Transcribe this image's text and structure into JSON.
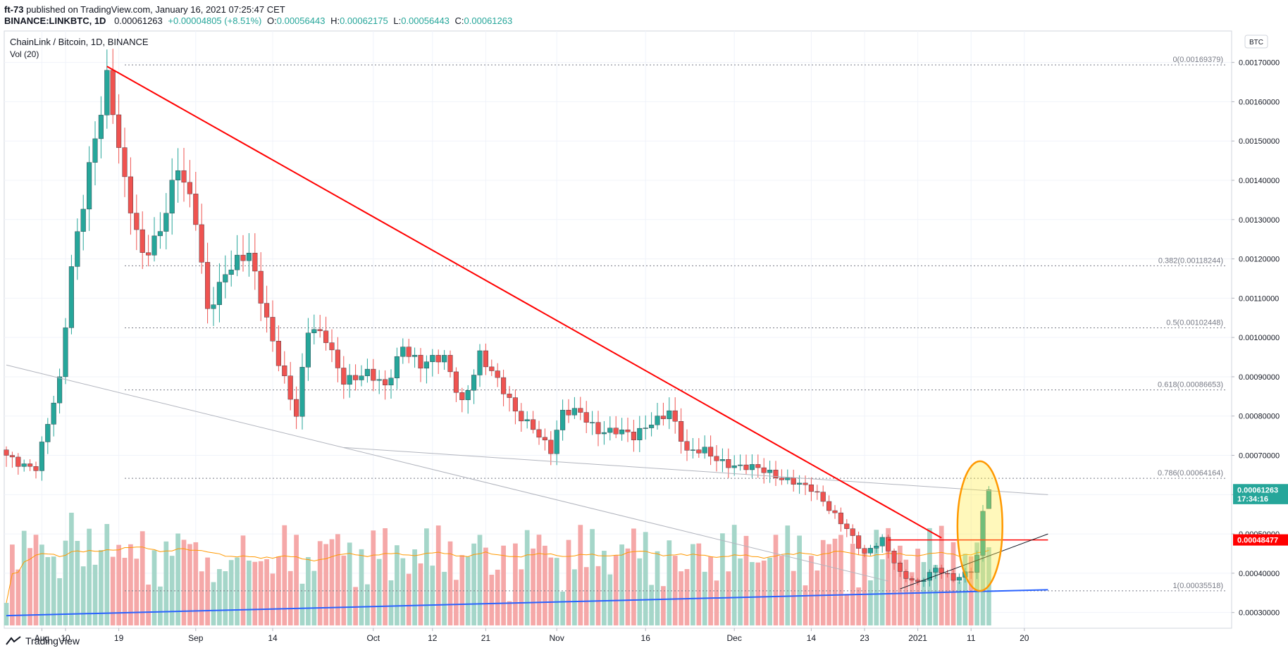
{
  "header": {
    "author": "ft-73",
    "published_text": "published on TradingView.com, January 16, 2021 07:25:47 CET",
    "symbol_line": "BINANCE:LINKBTC, 1D",
    "last_price": "0.00061263",
    "change": "+0.00004805 (+8.51%)",
    "o_label": "O:",
    "o_value": "0.00056443",
    "h_label": "H:",
    "h_value": "0.00062175",
    "l_label": "L:",
    "l_value": "0.00056443",
    "c_label": "C:",
    "c_value": "0.00061263"
  },
  "legend": {
    "title": "ChainLink / Bitcoin, 1D, BINANCE",
    "volume": "Vol (20)"
  },
  "scale_label": "BTC",
  "footer": {
    "brand": "TradingView"
  },
  "colors": {
    "up": "#26a69a",
    "down": "#ef5350",
    "up_vol": "#a5d6c9",
    "down_vol": "#f5a8a8",
    "trend": "#ff0000",
    "support": "#2962ff",
    "highlight": "#ff9800"
  },
  "chart_data": {
    "type": "candlestick",
    "title": "ChainLink / Bitcoin, 1D, BINANCE",
    "y_range": [
      0.00026,
      0.00178
    ],
    "y_ticks": [
      "0.00030000",
      "0.00040000",
      "0.00050000",
      "0.00060000",
      "0.00070000",
      "0.00080000",
      "0.00090000",
      "0.00100000",
      "0.00110000",
      "0.00120000",
      "0.00130000",
      "0.00140000",
      "0.00150000",
      "0.00160000",
      "0.00170000"
    ],
    "x_ticks": [
      {
        "label": "Aug",
        "day": 6
      },
      {
        "label": "10",
        "day": 10
      },
      {
        "label": "19",
        "day": 19
      },
      {
        "label": "Sep",
        "day": 32
      },
      {
        "label": "14",
        "day": 45
      },
      {
        "label": "Oct",
        "day": 62
      },
      {
        "label": "12",
        "day": 72
      },
      {
        "label": "21",
        "day": 81
      },
      {
        "label": "Nov",
        "day": 93
      },
      {
        "label": "16",
        "day": 108
      },
      {
        "label": "Dec",
        "day": 123
      },
      {
        "label": "14",
        "day": 136
      },
      {
        "label": "23",
        "day": 145
      },
      {
        "label": "2021",
        "day": 154
      },
      {
        "label": "11",
        "day": 163
      },
      {
        "label": "20",
        "day": 172
      }
    ],
    "price_path": [
      [
        0,
        0.0007
      ],
      [
        5,
        0.00067
      ],
      [
        9,
        0.00088
      ],
      [
        11,
        0.00118
      ],
      [
        14,
        0.00145
      ],
      [
        17,
        0.00165
      ],
      [
        20,
        0.00138
      ],
      [
        23,
        0.00122
      ],
      [
        26,
        0.00128
      ],
      [
        29,
        0.00142
      ],
      [
        32,
        0.0013
      ],
      [
        34,
        0.00108
      ],
      [
        37,
        0.00117
      ],
      [
        41,
        0.0012
      ],
      [
        45,
        0.001
      ],
      [
        49,
        0.0008
      ],
      [
        51,
        0.00101
      ],
      [
        54,
        0.001
      ],
      [
        57,
        0.0009
      ],
      [
        61,
        0.0009
      ],
      [
        64,
        0.00087
      ],
      [
        67,
        0.00099
      ],
      [
        70,
        0.00093
      ],
      [
        74,
        0.00094
      ],
      [
        77,
        0.00084
      ],
      [
        80,
        0.00096
      ],
      [
        83,
        0.00088
      ],
      [
        86,
        0.00081
      ],
      [
        89,
        0.00078
      ],
      [
        92,
        0.00071
      ],
      [
        94,
        0.0008
      ],
      [
        97,
        0.00081
      ],
      [
        100,
        0.00077
      ],
      [
        103,
        0.00076
      ],
      [
        106,
        0.00074
      ],
      [
        109,
        0.00079
      ],
      [
        112,
        0.00082
      ],
      [
        115,
        0.0007
      ],
      [
        118,
        0.00071
      ],
      [
        121,
        0.00069
      ],
      [
        124,
        0.00067
      ],
      [
        127,
        0.00066
      ],
      [
        130,
        0.00065
      ],
      [
        133,
        0.00064
      ],
      [
        136,
        0.00061
      ],
      [
        139,
        0.00056
      ],
      [
        142,
        0.00052
      ],
      [
        145,
        0.00045
      ],
      [
        148,
        0.00048
      ],
      [
        151,
        0.0004
      ],
      [
        154,
        0.00038
      ],
      [
        157,
        0.00041
      ],
      [
        160,
        0.00038
      ],
      [
        163,
        0.00041
      ],
      [
        164,
        0.00045
      ],
      [
        165,
        0.00056
      ],
      [
        166,
        0.00061
      ]
    ],
    "ohlc_last": {
      "open": 0.00056443,
      "high": 0.00062175,
      "low": 0.00056443,
      "close": 0.00061263
    },
    "volume_ma_period": 20,
    "fibonacci": [
      {
        "label": "0(0.00169379)",
        "value": 0.00169379
      },
      {
        "label": "0.382(0.00118244)",
        "value": 0.00118244
      },
      {
        "label": "0.5(0.00102448)",
        "value": 0.00102448
      },
      {
        "label": "0.618(0.00086653)",
        "value": 0.00086653
      },
      {
        "label": "0.786(0.00064164)",
        "value": 0.00064164
      },
      {
        "label": "1(0.00035518)",
        "value": 0.00035518
      }
    ],
    "lines": {
      "downtrend": {
        "from_day": 17,
        "from_value": 0.00169,
        "to_day": 158,
        "to_value": 0.00049
      },
      "horizontal_resistance": {
        "from_day": 149,
        "to_day": 176,
        "value": 0.00048477
      },
      "support": {
        "from_day": 0,
        "from_value": 0.000292,
        "to_day": 176,
        "to_value": 0.000358
      },
      "channel_upper": {
        "from_day": 0,
        "from_value": 0.00093,
        "to_day": 149,
        "to_value": 0.00038
      },
      "channel_lower": {
        "from_day": 57,
        "from_value": 0.00072,
        "to_day": 176,
        "to_value": 0.0006
      },
      "rising": {
        "from_day": 151,
        "from_value": 0.00036,
        "to_day": 176,
        "to_value": 0.0005
      }
    },
    "price_labels": [
      {
        "text": "0.00061263",
        "value": 0.00061263,
        "color": "#26a69a"
      },
      {
        "text": "17:34:16",
        "value": 0.00059,
        "color": "#26a69a"
      },
      {
        "text": "0.00048477",
        "value": 0.00048477,
        "color": "#ff0000"
      }
    ],
    "highlight_ellipse": {
      "center_day": 164.5,
      "center_value": 0.00052,
      "half_width_days": 3.8,
      "half_height_value": 0.000165
    }
  }
}
